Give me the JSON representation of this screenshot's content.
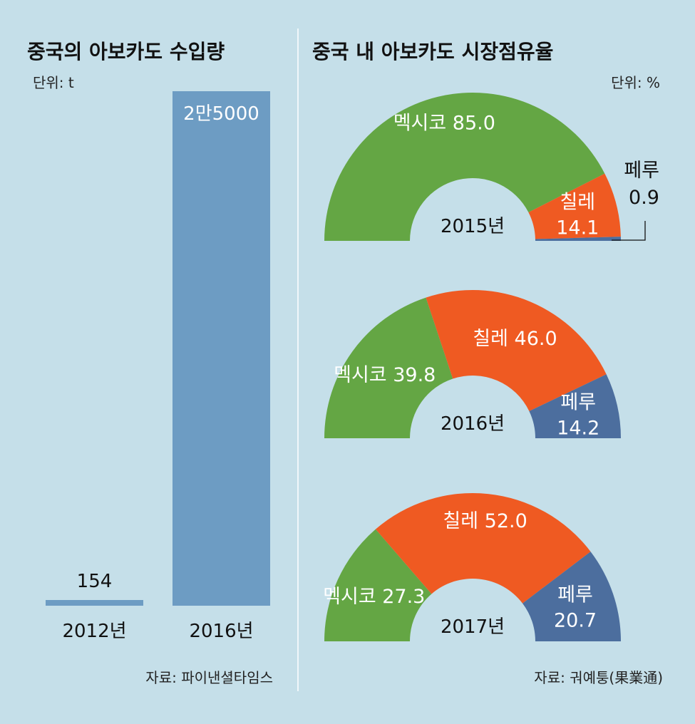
{
  "left_title": "중국의 아보카도 수입량",
  "left_unit": "단위: t",
  "left_source": "자료: 파이낸셜타임스",
  "right_title": "중국 내 아보카도 시장점유율",
  "right_unit": "단위: %",
  "right_source": "자료: 궈예퉁(果業通)",
  "colors": {
    "background": "#c5dfe9",
    "bar": "#6d9cc3",
    "mexico": "#64a644",
    "chile": "#ef5a22",
    "peru": "#4c6e9e"
  },
  "chart_data": [
    {
      "type": "bar",
      "title": "중국의 아보카도 수입량",
      "unit": "t",
      "categories": [
        "2012년",
        "2016년"
      ],
      "values": [
        154,
        25000
      ],
      "data_labels": [
        "154",
        "2만5000"
      ]
    },
    {
      "type": "pie",
      "subtype": "half-donut",
      "title": "중국 내 아보카도 시장점유율",
      "unit": "%",
      "years": [
        {
          "label": "2015년",
          "slices": [
            {
              "name": "멕시코",
              "value": 85.0,
              "label": "멕시코 85.0"
            },
            {
              "name": "칠레",
              "value": 14.1,
              "label": "칠레 14.1"
            },
            {
              "name": "페루",
              "value": 0.9,
              "label": "페루 0.9"
            }
          ]
        },
        {
          "label": "2016년",
          "slices": [
            {
              "name": "멕시코",
              "value": 39.8,
              "label": "멕시코 39.8"
            },
            {
              "name": "칠레",
              "value": 46.0,
              "label": "칠레 46.0"
            },
            {
              "name": "페루",
              "value": 14.2,
              "label": "페루 14.2"
            }
          ]
        },
        {
          "label": "2017년",
          "slices": [
            {
              "name": "멕시코",
              "value": 27.3,
              "label": "멕시코 27.3"
            },
            {
              "name": "칠레",
              "value": 52.0,
              "label": "칠레 52.0"
            },
            {
              "name": "페루",
              "value": 20.7,
              "label": "페루 20.7"
            }
          ]
        }
      ]
    }
  ]
}
